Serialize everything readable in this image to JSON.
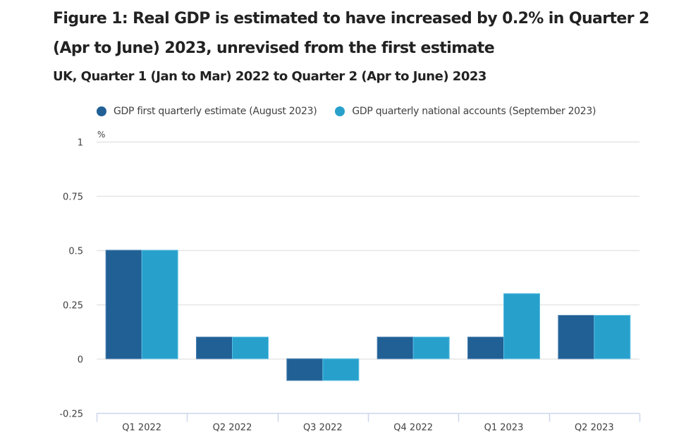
{
  "chart_data": {
    "type": "bar",
    "title": "Figure 1: Real GDP is estimated to have increased by 0.2% in Quarter 2 (Apr to June) 2023, unrevised from the first estimate",
    "subtitle": "UK, Quarter 1 (Jan to Mar) 2022 to Quarter 2 (Apr to June) 2023",
    "xlabel": "",
    "ylabel": "%",
    "categories": [
      "Q1 2022",
      "Q2 2022",
      "Q3 2022",
      "Q4 2022",
      "Q1 2023",
      "Q2 2023"
    ],
    "series": [
      {
        "name": "GDP first quarterly estimate (August 2023)",
        "color": "#206095",
        "values": [
          0.5,
          0.1,
          -0.1,
          0.1,
          0.1,
          0.2
        ]
      },
      {
        "name": "GDP quarterly national accounts (September 2023)",
        "color": "#27a0cc",
        "values": [
          0.5,
          0.1,
          -0.1,
          0.1,
          0.3,
          0.2
        ]
      }
    ],
    "ylim": [
      -0.25,
      1
    ],
    "yticks": [
      -0.25,
      0,
      0.25,
      0.5,
      0.75,
      1
    ],
    "ytick_labels": [
      "-0.25",
      "0",
      "0.25",
      "0.5",
      "0.75",
      "1"
    ],
    "grid": true,
    "legend_position": "top-left"
  }
}
